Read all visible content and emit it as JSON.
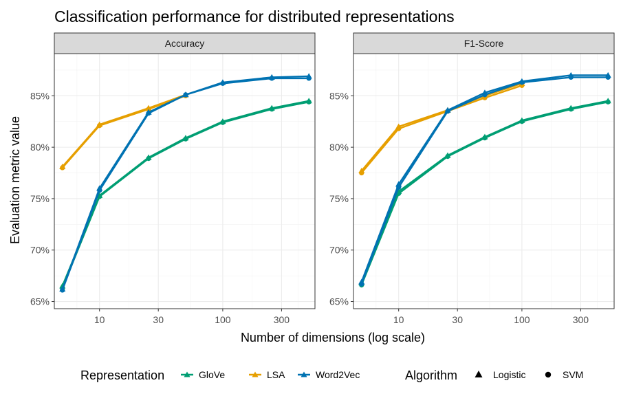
{
  "chart_data": {
    "type": "line",
    "title": "Classification performance for distributed representations",
    "xlabel": "Number of dimensions (log scale)",
    "ylabel": "Evaluation metric value",
    "x_scale": "log10",
    "x_ticks": [
      10,
      30,
      100,
      300
    ],
    "x_tick_labels": [
      "10",
      "30",
      "100",
      "300"
    ],
    "y_ticks": [
      0.65,
      0.7,
      0.75,
      0.8,
      0.85
    ],
    "y_tick_labels": [
      "65%",
      "70%",
      "75%",
      "80%",
      "85%"
    ],
    "ylim": [
      0.643,
      0.891
    ],
    "xlim": [
      4.3,
      560
    ],
    "grid": true,
    "legend_position": "bottom",
    "colors": {
      "GloVe": "#009E73",
      "LSA": "#E69F00",
      "Word2Vec": "#0072B2"
    },
    "legend": {
      "representation_title": "Representation",
      "representation_items": [
        "GloVe",
        "LSA",
        "Word2Vec"
      ],
      "algorithm_title": "Algorithm",
      "algorithm_items": [
        {
          "label": "Logistic",
          "shape": "triangle"
        },
        {
          "label": "SVM",
          "shape": "circle"
        }
      ]
    },
    "panels": [
      {
        "name": "Accuracy",
        "series": [
          {
            "representation": "GloVe",
            "algorithm": "Logistic",
            "x": [
              5,
              10,
              25,
              50,
              100,
              250,
              500
            ],
            "y": [
              0.665,
              0.753,
              0.79,
              0.809,
              0.825,
              0.838,
              0.845
            ]
          },
          {
            "representation": "GloVe",
            "algorithm": "SVM",
            "x": [
              5,
              10,
              25,
              50,
              100,
              250,
              500
            ],
            "y": [
              0.663,
              0.752,
              0.789,
              0.808,
              0.824,
              0.837,
              0.844
            ]
          },
          {
            "representation": "LSA",
            "algorithm": "Logistic",
            "x": [
              5,
              10,
              25,
              50
            ],
            "y": [
              0.781,
              0.822,
              0.838,
              0.851
            ]
          },
          {
            "representation": "LSA",
            "algorithm": "SVM",
            "x": [
              5,
              10,
              25,
              50
            ],
            "y": [
              0.78,
              0.821,
              0.837,
              0.85
            ]
          },
          {
            "representation": "Word2Vec",
            "algorithm": "Logistic",
            "x": [
              5,
              10,
              25,
              50,
              100,
              250,
              500
            ],
            "y": [
              0.662,
              0.76,
              0.834,
              0.851,
              0.863,
              0.868,
              0.869
            ]
          },
          {
            "representation": "Word2Vec",
            "algorithm": "SVM",
            "x": [
              5,
              10,
              25,
              50,
              100,
              250,
              500
            ],
            "y": [
              0.661,
              0.758,
              0.833,
              0.851,
              0.862,
              0.867,
              0.867
            ]
          }
        ]
      },
      {
        "name": "F1-Score",
        "series": [
          {
            "representation": "GloVe",
            "algorithm": "Logistic",
            "x": [
              5,
              10,
              25,
              50,
              100,
              250,
              500
            ],
            "y": [
              0.668,
              0.757,
              0.792,
              0.81,
              0.826,
              0.838,
              0.845
            ]
          },
          {
            "representation": "GloVe",
            "algorithm": "SVM",
            "x": [
              5,
              10,
              25,
              50,
              100,
              250,
              500
            ],
            "y": [
              0.666,
              0.755,
              0.791,
              0.809,
              0.825,
              0.837,
              0.844
            ]
          },
          {
            "representation": "LSA",
            "algorithm": "Logistic",
            "x": [
              5,
              10,
              25,
              50,
              100
            ],
            "y": [
              0.777,
              0.82,
              0.836,
              0.85,
              0.862
            ]
          },
          {
            "representation": "LSA",
            "algorithm": "SVM",
            "x": [
              5,
              10,
              25,
              50,
              100
            ],
            "y": [
              0.775,
              0.818,
              0.835,
              0.848,
              0.86
            ]
          },
          {
            "representation": "Word2Vec",
            "algorithm": "Logistic",
            "x": [
              5,
              10,
              25,
              50,
              100,
              250,
              500
            ],
            "y": [
              0.669,
              0.764,
              0.836,
              0.853,
              0.864,
              0.87,
              0.87
            ]
          },
          {
            "representation": "Word2Vec",
            "algorithm": "SVM",
            "x": [
              5,
              10,
              25,
              50,
              100,
              250,
              500
            ],
            "y": [
              0.667,
              0.761,
              0.835,
              0.851,
              0.863,
              0.868,
              0.868
            ]
          }
        ]
      }
    ]
  }
}
